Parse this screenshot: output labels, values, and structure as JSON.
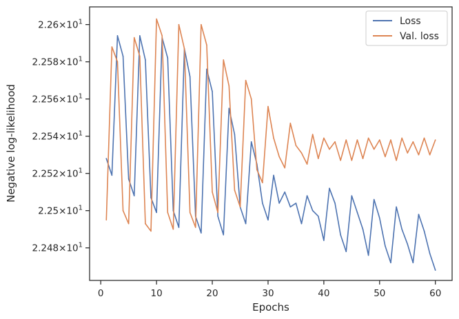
{
  "chart_data": {
    "type": "line",
    "xlabel": "Epochs",
    "ylabel": "Negative log-likelihood",
    "xlim": [
      -2,
      63
    ],
    "ylim": [
      22.4625,
      22.6095
    ],
    "x_ticks": [
      0,
      10,
      20,
      30,
      40,
      50,
      60
    ],
    "y_ticks": [
      {
        "value": 22.48,
        "mantissa": "2.248",
        "exponent": "1"
      },
      {
        "value": 22.5,
        "mantissa": "2.25",
        "exponent": "1"
      },
      {
        "value": 22.52,
        "mantissa": "2.252",
        "exponent": "1"
      },
      {
        "value": 22.54,
        "mantissa": "2.254",
        "exponent": "1"
      },
      {
        "value": 22.56,
        "mantissa": "2.256",
        "exponent": "1"
      },
      {
        "value": 22.58,
        "mantissa": "2.258",
        "exponent": "1"
      },
      {
        "value": 22.6,
        "mantissa": "2.26",
        "exponent": "1"
      }
    ],
    "tick_times": "×10",
    "grid": false,
    "legend_position": "top-right",
    "x": [
      1,
      2,
      3,
      4,
      5,
      6,
      7,
      8,
      9,
      10,
      11,
      12,
      13,
      14,
      15,
      16,
      17,
      18,
      19,
      20,
      21,
      22,
      23,
      24,
      25,
      26,
      27,
      28,
      29,
      30,
      31,
      32,
      33,
      34,
      35,
      36,
      37,
      38,
      39,
      40,
      41,
      42,
      43,
      44,
      45,
      46,
      47,
      48,
      49,
      50,
      51,
      52,
      53,
      54,
      55,
      56,
      57,
      58,
      59,
      60
    ],
    "series": [
      {
        "name": "Loss",
        "color": "#4c72b0",
        "values": [
          22.528,
          22.519,
          22.594,
          22.583,
          22.517,
          22.508,
          22.594,
          22.581,
          22.507,
          22.499,
          22.593,
          22.582,
          22.5,
          22.491,
          22.587,
          22.572,
          22.497,
          22.488,
          22.576,
          22.564,
          22.497,
          22.487,
          22.555,
          22.541,
          22.502,
          22.493,
          22.537,
          22.525,
          22.504,
          22.495,
          22.519,
          22.504,
          22.51,
          22.502,
          22.504,
          22.493,
          22.508,
          22.5,
          22.497,
          22.484,
          22.512,
          22.504,
          22.487,
          22.478,
          22.508,
          22.499,
          22.49,
          22.476,
          22.506,
          22.496,
          22.481,
          22.472,
          22.502,
          22.49,
          22.482,
          22.472,
          22.498,
          22.489,
          22.477,
          22.468
        ]
      },
      {
        "name": "Val. loss",
        "color": "#dd8452",
        "values": [
          22.495,
          22.588,
          22.58,
          22.5,
          22.493,
          22.593,
          22.583,
          22.493,
          22.489,
          22.603,
          22.594,
          22.499,
          22.49,
          22.6,
          22.587,
          22.499,
          22.491,
          22.6,
          22.589,
          22.51,
          22.499,
          22.581,
          22.567,
          22.511,
          22.502,
          22.57,
          22.56,
          22.522,
          22.515,
          22.556,
          22.539,
          22.529,
          22.523,
          22.547,
          22.535,
          22.531,
          22.525,
          22.541,
          22.528,
          22.539,
          22.533,
          22.537,
          22.527,
          22.538,
          22.527,
          22.538,
          22.528,
          22.539,
          22.533,
          22.538,
          22.529,
          22.538,
          22.527,
          22.539,
          22.531,
          22.537,
          22.53,
          22.539,
          22.53,
          22.538
        ]
      }
    ]
  }
}
